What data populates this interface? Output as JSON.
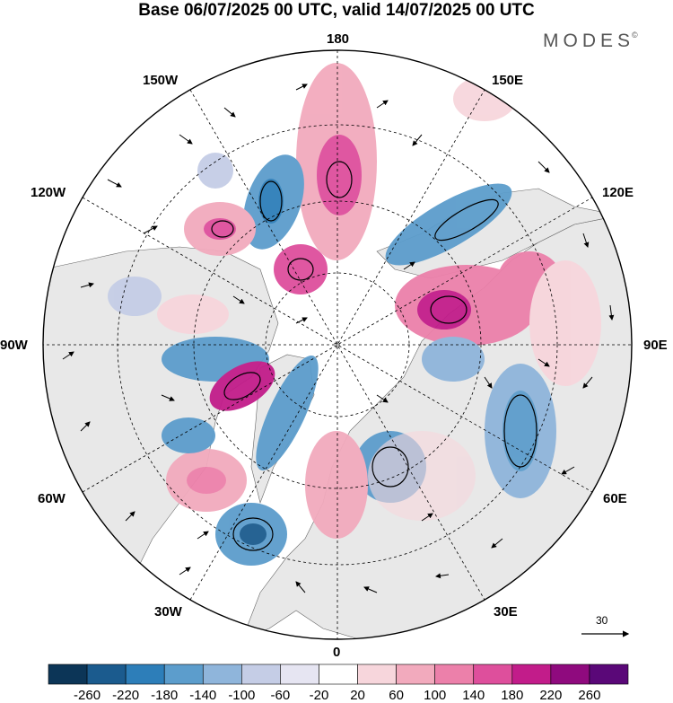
{
  "title": "Base 06/07/2025 00 UTC, valid 14/07/2025 00 UTC",
  "brand": {
    "text": "MODES",
    "mark": "©"
  },
  "longitude_labels": {
    "top": "180",
    "bottom": "0",
    "left": "90W",
    "right": "90E",
    "upper_left_outer": "150W",
    "upper_left_inner": "120W",
    "upper_right_outer": "150E",
    "upper_right_inner": "120E",
    "lower_left_outer": "60W",
    "lower_left_inner": "30W",
    "lower_right_outer": "60E",
    "lower_right_inner": "30E"
  },
  "wind_scale": {
    "label": "30",
    "icon": "arrow-right-icon"
  },
  "colorbar": {
    "ticks": [
      "-260",
      "-220",
      "-180",
      "-140",
      "-100",
      "-60",
      "-20",
      "20",
      "60",
      "100",
      "140",
      "180",
      "220",
      "260"
    ],
    "colors": [
      "#0c3557",
      "#1b5b8e",
      "#2d7eb9",
      "#5c9dcc",
      "#8fb5db",
      "#c5cde6",
      "#e6e5f2",
      "#ffffff",
      "#f7d6dc",
      "#f2aabd",
      "#ec80aa",
      "#de4f9c",
      "#c21c8a",
      "#8f0a7e",
      "#5a0878"
    ]
  },
  "map_features": {
    "projection": "north-polar-stereographic",
    "land_color": "#e8e8e8",
    "ocean_color": "#ffffff",
    "graticule": "dashed"
  }
}
